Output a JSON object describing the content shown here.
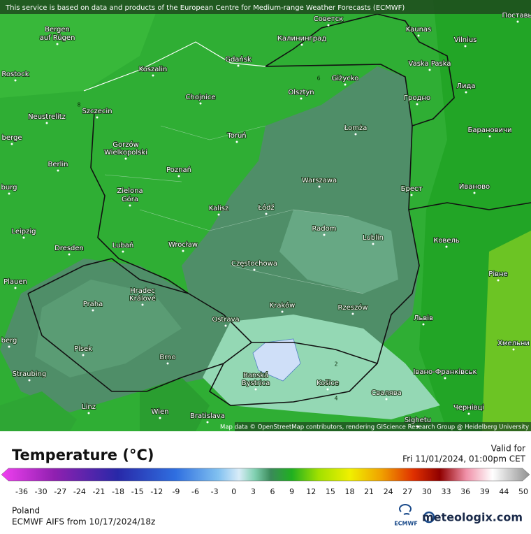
{
  "header": {
    "notice": "This service is based on data and products of the European Centre for Medium-range Weather Forecasts (ECMWF)"
  },
  "map": {
    "attribution": "Map data © OpenStreetMap contributors, rendering GIScience Research Group @ Heidelberg University",
    "cities": [
      "Советск",
      "Kaunas",
      "Vilnius",
      "Поставы",
      "Калининград",
      "Bergen",
      "auf Rügen",
      "Gdańsk",
      "Vaska Paska",
      "Rostock",
      "Koszalin",
      "Giżycko",
      "Лида",
      "Olsztyn",
      "Chojnice",
      "Гродно",
      "Neustrelitz",
      "Szczecin",
      "Łomża",
      "Барановичи",
      "berge",
      "Gorzów",
      "Wielkopolski",
      "Toruń",
      "Berlin",
      "Poznań",
      "Warszawa",
      "Брест",
      "Иваново",
      "burg",
      "Zielona",
      "Góra",
      "Kalisz",
      "Łódź",
      "Radom",
      "Leipzig",
      "Lublin",
      "Ковель",
      "Dresden",
      "Lubań",
      "Wrocław",
      "Częstochowa",
      "Plauen",
      "Рівне",
      "Hradec",
      "Králové",
      "Praha",
      "Kraków",
      "Rzeszów",
      "Ostrava",
      "Львів",
      "berg",
      "Хмельни",
      "Písek",
      "Brno",
      "Banská",
      "Bystrica",
      "Košice",
      "Івано-Франківськ",
      "Straubing",
      "Свалява",
      "Linz",
      "Чернівці",
      "Wien",
      "Bratislava",
      "Sighetu"
    ],
    "contours": [
      "6",
      "2",
      "8",
      "4"
    ]
  },
  "legend": {
    "title": "Temperature (°C)",
    "valid_label": "Valid for",
    "valid_time": "Fri 11/01/2024, 01:00pm CET",
    "ticks": [
      "-36",
      "-30",
      "-27",
      "-24",
      "-21",
      "-18",
      "-15",
      "-12",
      "-9",
      "-6",
      "-3",
      "0",
      "3",
      "6",
      "9",
      "12",
      "15",
      "18",
      "21",
      "24",
      "27",
      "30",
      "33",
      "36",
      "39",
      "44",
      "50"
    ]
  },
  "footer": {
    "region": "Poland",
    "model": "ECMWF AIFS from  10/17/2024/18z",
    "ecmwf_logo": "ECMWF",
    "brand": "meteologix.com"
  }
}
